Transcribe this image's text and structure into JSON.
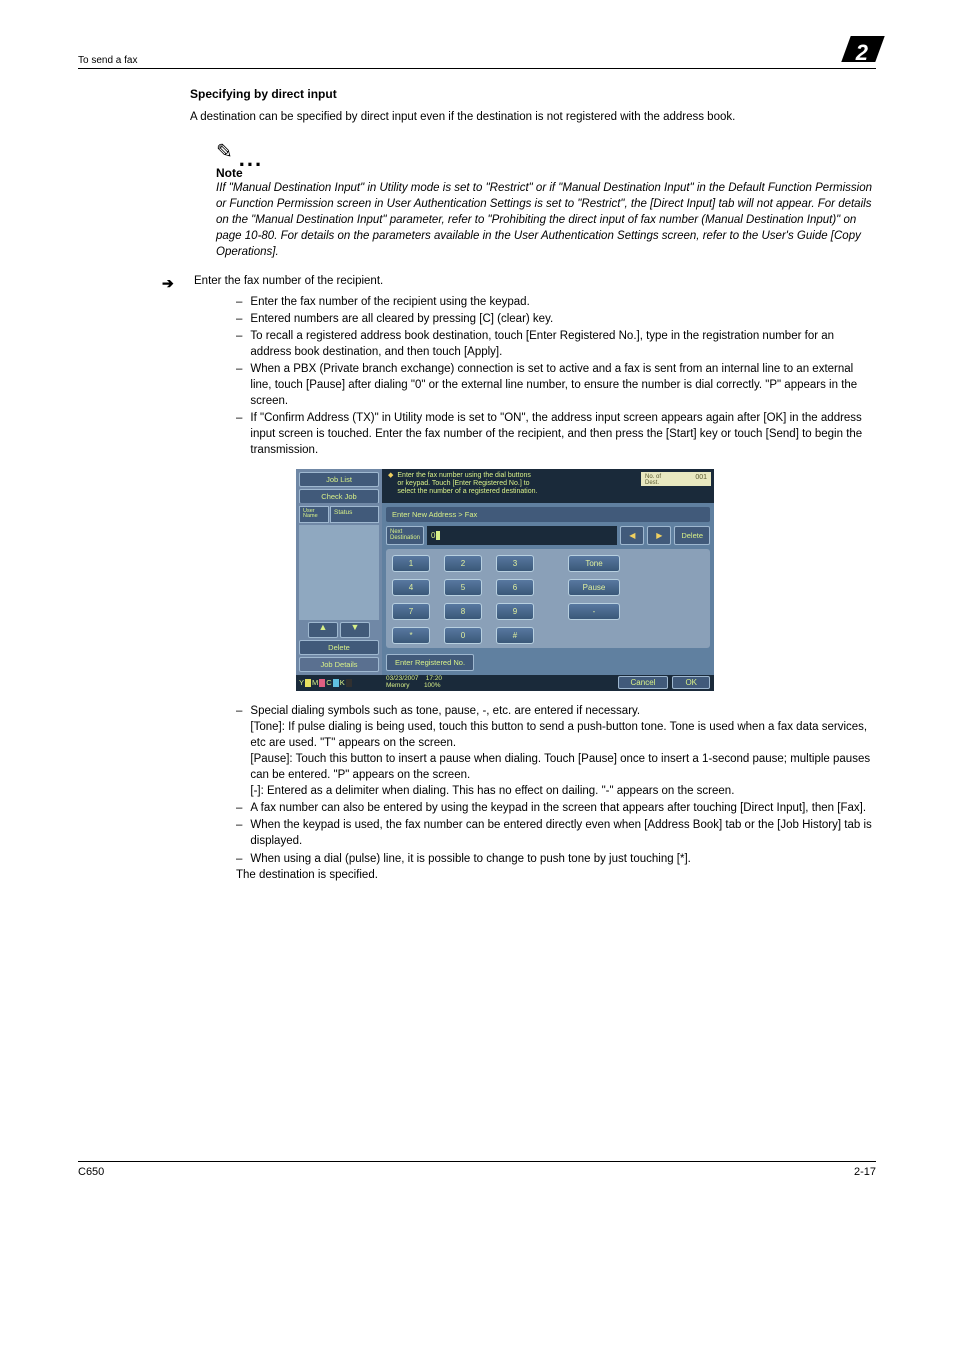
{
  "header": {
    "left": "To send a fax",
    "section_number": "2"
  },
  "subheading": "Specifying by direct input",
  "intro": "A destination can be specified by direct input even if the destination is not registered with the address book.",
  "note": {
    "label": "Note",
    "text": "IIf \"Manual Destination Input\" in Utility mode is set to \"Restrict\" or if \"Manual Destination Input\" in the Default Function Permission or Function Permission screen in User Authentication Settings is set to \"Restrict\", the [Direct Input] tab will not appear. For details on the \"Manual Destination Input\" parameter, refer to \"Prohibiting the direct input of fax number (Manual Destination Input)\" on page 10-80. For details on the parameters available in the User Authentication Settings screen, refer to the User's Guide [Copy Operations]."
  },
  "step": "Enter the fax number of the recipient.",
  "pre_items": [
    "Enter the fax number of the recipient using the keypad.",
    "Entered numbers are all cleared by pressing [C] (clear) key.",
    "To recall a registered address book destination, touch [Enter Registered No.], type in the registration number for an address book destination, and then touch [Apply].",
    "When a PBX (Private branch exchange) connection is set to active and a fax is sent from an internal line to an external line, touch [Pause] after dialing \"0\" or the external line number, to ensure the number is dial correctly. \"P\" appears in the screen.",
    "If \"Confirm Address (TX)\" in Utility mode is set to \"ON\", the address input screen appears again after [OK] in the address input screen is touched. Enter the fax number of the recipient, and then press the [Start] key or touch [Send] to begin the transmission."
  ],
  "post_items": [
    "Special dialing symbols such as tone, pause, -, etc. are entered if necessary.\n[Tone]: If pulse dialing is being used, touch this button to send a push-button tone. Tone is used when a fax data services, etc are used. \"T\" appears on the screen.\n[Pause]: Touch this button to insert a pause when dialing. Touch [Pause] once to insert a 1-second pause; multiple pauses can be entered. \"P\" appears on the screen.\n[-]: Entered as a delimiter when dialing. This has no effect on dailing. \"-\" appears on the screen.",
    "A fax number can also be entered by using the keypad in the screen that appears after touching [Direct Input], then [Fax].",
    "When the keypad is used, the fax number can be entered directly even when [Address Book] tab or the [Job History] tab is displayed.",
    "When using a dial (pulse) line, it is possible to change to push tone by just touching [*]."
  ],
  "closing": "The destination is specified.",
  "panel": {
    "tabs": {
      "job_list": "Job List",
      "check_job": "Check Job"
    },
    "msg": "Enter the fax number using the dial buttons\nor keypad. Touch [Enter Registered No.] to\nselect the number of a registered destination.",
    "dest_label": "No. of\nDest.",
    "dest_count": "001",
    "side": {
      "user": "User\nName",
      "status": "Status",
      "delete": "Delete",
      "details": "Job Details"
    },
    "breadcrumb": "Enter New Address > Fax",
    "next_dest": "Next\nDestination",
    "number_value": "0",
    "delete_btn": "Delete",
    "keys": {
      "r1": [
        "1",
        "2",
        "3"
      ],
      "r1_extra": "Tone",
      "r2": [
        "4",
        "5",
        "6"
      ],
      "r2_extra": "Pause",
      "r3": [
        "7",
        "8",
        "9"
      ],
      "r3_extra": "-",
      "r4": [
        "*",
        "0",
        "#"
      ]
    },
    "enter_reg": "Enter Registered No.",
    "footer": {
      "date": "03/23/2007",
      "time": "17:20",
      "mem_label": "Memory",
      "mem_val": "100%",
      "cancel": "Cancel",
      "ok": "OK"
    },
    "indicators": [
      "Y",
      "M",
      "C",
      "K"
    ],
    "ind_colors": [
      "#e8e060",
      "#e06080",
      "#60c0e0",
      "#303030"
    ]
  },
  "footer": {
    "left": "C650",
    "right": "2-17"
  }
}
